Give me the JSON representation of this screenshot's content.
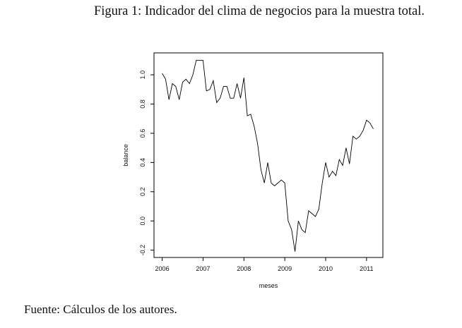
{
  "figure_title": "Figura 1: Indicador del clima de negocios para la muestra total.",
  "source_note": "Fuente: Cálculos de los autores.",
  "chart_data": {
    "type": "line",
    "xlabel": "meses",
    "ylabel": "balance",
    "xlim": [
      2005.8,
      2011.4
    ],
    "ylim": [
      -0.25,
      1.15
    ],
    "x_ticks": [
      2006,
      2007,
      2008,
      2009,
      2010,
      2011
    ],
    "x_tick_labels": [
      "2006",
      "2007",
      "2008",
      "2009",
      "2010",
      "2011"
    ],
    "y_ticks": [
      -0.2,
      0.0,
      0.2,
      0.4,
      0.6,
      0.8,
      1.0
    ],
    "y_tick_labels": [
      "-0.2",
      "0.0",
      "0.2",
      "0.4",
      "0.6",
      "0.8",
      "1.0"
    ],
    "series": [
      {
        "color": "#000000",
        "x": [
          2006.0,
          2006.083,
          2006.167,
          2006.25,
          2006.333,
          2006.417,
          2006.5,
          2006.583,
          2006.667,
          2006.75,
          2006.833,
          2006.917,
          2007.0,
          2007.083,
          2007.167,
          2007.25,
          2007.333,
          2007.417,
          2007.5,
          2007.583,
          2007.667,
          2007.75,
          2007.833,
          2007.917,
          2008.0,
          2008.083,
          2008.167,
          2008.25,
          2008.333,
          2008.417,
          2008.5,
          2008.583,
          2008.667,
          2008.75,
          2008.833,
          2008.917,
          2009.0,
          2009.083,
          2009.167,
          2009.25,
          2009.333,
          2009.417,
          2009.5,
          2009.583,
          2009.667,
          2009.75,
          2009.833,
          2009.917,
          2010.0,
          2010.083,
          2010.167,
          2010.25,
          2010.333,
          2010.417,
          2010.5,
          2010.583,
          2010.667,
          2010.75,
          2010.833,
          2010.917,
          2011.0,
          2011.083,
          2011.167
        ],
        "y": [
          1.01,
          0.97,
          0.83,
          0.94,
          0.92,
          0.83,
          0.95,
          0.97,
          0.94,
          1.0,
          1.1,
          1.1,
          1.1,
          0.89,
          0.9,
          0.96,
          0.81,
          0.84,
          0.92,
          0.92,
          0.84,
          0.84,
          0.94,
          0.84,
          0.98,
          0.72,
          0.73,
          0.65,
          0.53,
          0.35,
          0.26,
          0.4,
          0.26,
          0.24,
          0.26,
          0.28,
          0.26,
          0.0,
          -0.06,
          -0.21,
          0.0,
          -0.06,
          -0.08,
          0.07,
          0.05,
          0.03,
          0.08,
          0.26,
          0.4,
          0.3,
          0.34,
          0.31,
          0.42,
          0.38,
          0.5,
          0.39,
          0.58,
          0.56,
          0.58,
          0.62,
          0.69,
          0.67,
          0.63
        ]
      }
    ]
  }
}
